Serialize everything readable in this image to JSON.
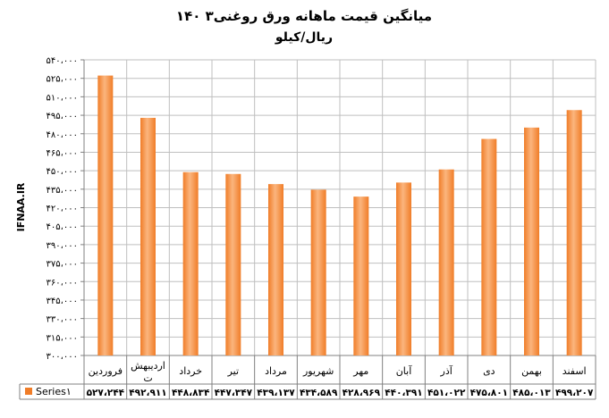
{
  "chart_data": {
    "type": "bar",
    "title": "میانگین قیمت ماهانه  ورق روغنی۳ ۱۴۰",
    "subtitle": "ریال/کیلو",
    "ylabel": "IFNAA.IR",
    "xlabel": "",
    "categories": [
      "فروردین",
      "اردیبهشت",
      "خرداد",
      "تیر",
      "مرداد",
      "شهریور",
      "مهر",
      "آبان",
      "آذر",
      "دی",
      "بهمن",
      "اسفند"
    ],
    "category_lines": [
      [
        "فروردین"
      ],
      [
        "اردیبهش",
        "ت"
      ],
      [
        "خرداد"
      ],
      [
        "تیر"
      ],
      [
        "مرداد"
      ],
      [
        "شهریور"
      ],
      [
        "مهر"
      ],
      [
        "آبان"
      ],
      [
        "آذر"
      ],
      [
        "دی"
      ],
      [
        "بهمن"
      ],
      [
        "اسفند"
      ]
    ],
    "series": [
      {
        "name": "Series۱",
        "values": [
          527244,
          492911,
          448834,
          447347,
          439137,
          434589,
          428969,
          440391,
          451022,
          475801,
          485013,
          499207
        ],
        "value_labels": [
          "۵۲۷،۲۴۴",
          "۴۹۲،۹۱۱",
          "۴۴۸،۸۳۴",
          "۴۴۷،۳۴۷",
          "۴۳۹،۱۳۷",
          "۴۳۴،۵۸۹",
          "۴۲۸،۹۶۹",
          "۴۴۰،۳۹۱",
          "۴۵۱،۰۲۲",
          "۴۷۵،۸۰۱",
          "۴۸۵،۰۱۳",
          "۴۹۹،۲۰۷"
        ],
        "color": "#f07d28"
      }
    ],
    "ylim": [
      300000,
      540000
    ],
    "y_ticks": [
      300000,
      315000,
      330000,
      345000,
      360000,
      375000,
      390000,
      405000,
      420000,
      435000,
      450000,
      465000,
      480000,
      495000,
      510000,
      525000,
      540000
    ],
    "y_tick_labels": [
      "۳۰۰،۰۰۰",
      "۳۱۵،۰۰۰",
      "۳۳۰،۰۰۰",
      "۳۴۵،۰۰۰",
      "۳۶۰،۰۰۰",
      "۳۷۵،۰۰۰",
      "۳۹۰،۰۰۰",
      "۴۰۵،۰۰۰",
      "۴۲۰،۰۰۰",
      "۴۳۵،۰۰۰",
      "۴۵۰،۰۰۰",
      "۴۶۵،۰۰۰",
      "۴۸۰،۰۰۰",
      "۴۹۵،۰۰۰",
      "۵۱۰،۰۰۰",
      "۵۲۵،۰۰۰",
      "۵۴۰،۰۰۰"
    ],
    "grid": true,
    "legend": "bottom-left (data table key)",
    "data_table": true,
    "colors": {
      "bar": "#f07d28",
      "bar_light": "#fbb57e",
      "grid": "#bfbfbf",
      "axis": "#808080"
    }
  }
}
